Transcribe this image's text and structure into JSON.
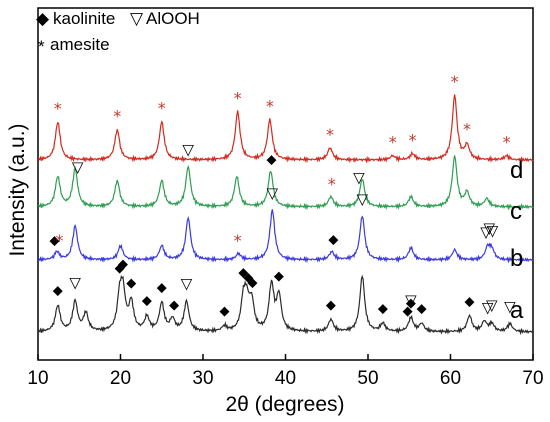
{
  "chart_data": {
    "type": "line",
    "title": "",
    "xlabel": "2θ (degrees)",
    "ylabel": "Intensity (a.u.)",
    "xlim": [
      10,
      70
    ],
    "x_ticks": [
      "10",
      "20",
      "30",
      "40",
      "50",
      "60",
      "70"
    ],
    "y_ticks": [],
    "grid": false,
    "legend": {
      "placement": "top-left",
      "entries": [
        {
          "symbol": "◆",
          "label": "kaolinite",
          "color": "#000000"
        },
        {
          "symbol": "▽",
          "label": "AlOOH",
          "color": "#000000"
        },
        {
          "symbol": "*",
          "label": "amesite",
          "color": "#c0392b"
        }
      ]
    },
    "series": [
      {
        "name": "a",
        "color": "#2b2b2b",
        "offset": 0,
        "peaks": [
          [
            12.4,
            26
          ],
          [
            14.5,
            30
          ],
          [
            15.8,
            18
          ],
          [
            19.9,
            32
          ],
          [
            20.3,
            36
          ],
          [
            21.3,
            28
          ],
          [
            23.2,
            14
          ],
          [
            25.0,
            28
          ],
          [
            26.3,
            12
          ],
          [
            28.0,
            30
          ],
          [
            32.6,
            5
          ],
          [
            34.9,
            30
          ],
          [
            35.3,
            26
          ],
          [
            35.9,
            28
          ],
          [
            38.3,
            46
          ],
          [
            39.2,
            35
          ],
          [
            45.5,
            12
          ],
          [
            49.3,
            56
          ],
          [
            51.8,
            8
          ],
          [
            55.2,
            14
          ],
          [
            56.5,
            8
          ],
          [
            62.3,
            16
          ],
          [
            64.1,
            10
          ],
          [
            65.0,
            8
          ],
          [
            67.2,
            8
          ]
        ]
      },
      {
        "name": "b",
        "color": "#3a3ae0",
        "offset": 72,
        "peaks": [
          [
            12.3,
            8
          ],
          [
            14.5,
            34
          ],
          [
            20.0,
            14
          ],
          [
            25.0,
            14
          ],
          [
            28.2,
            42
          ],
          [
            34.3,
            6
          ],
          [
            38.4,
            50
          ],
          [
            45.6,
            8
          ],
          [
            49.3,
            44
          ],
          [
            55.2,
            12
          ],
          [
            60.5,
            10
          ],
          [
            64.5,
            12
          ],
          [
            65.0,
            10
          ]
        ]
      },
      {
        "name": "c",
        "color": "#2e9e4f",
        "offset": 125,
        "peaks": [
          [
            12.4,
            30
          ],
          [
            14.5,
            38
          ],
          [
            19.6,
            26
          ],
          [
            25.0,
            26
          ],
          [
            28.2,
            40
          ],
          [
            34.1,
            30
          ],
          [
            38.2,
            36
          ],
          [
            45.5,
            10
          ],
          [
            49.3,
            28
          ],
          [
            55.2,
            10
          ],
          [
            60.5,
            50
          ],
          [
            62.0,
            14
          ],
          [
            64.4,
            8
          ]
        ]
      },
      {
        "name": "d",
        "color": "#d42a1c",
        "offset": 172,
        "peaks": [
          [
            12.4,
            38
          ],
          [
            19.6,
            30
          ],
          [
            25.0,
            38
          ],
          [
            34.2,
            48
          ],
          [
            38.1,
            40
          ],
          [
            45.4,
            12
          ],
          [
            53.0,
            4
          ],
          [
            55.4,
            6
          ],
          [
            60.5,
            64
          ],
          [
            62.0,
            14
          ],
          [
            66.8,
            4
          ]
        ]
      }
    ],
    "annotations": {
      "kaolinite": [
        [
          12.4,
          "a"
        ],
        [
          19.9,
          "a"
        ],
        [
          20.3,
          "a"
        ],
        [
          21.3,
          "a"
        ],
        [
          23.2,
          "a"
        ],
        [
          25.0,
          "a"
        ],
        [
          26.5,
          "a"
        ],
        [
          32.6,
          "a"
        ],
        [
          34.9,
          "a"
        ],
        [
          35.5,
          "a"
        ],
        [
          36.0,
          "a"
        ],
        [
          38.3,
          "c"
        ],
        [
          39.2,
          "a"
        ],
        [
          45.5,
          "a"
        ],
        [
          45.8,
          "b"
        ],
        [
          51.8,
          "a"
        ],
        [
          54.8,
          "a"
        ],
        [
          55.2,
          "a"
        ],
        [
          56.5,
          "a"
        ],
        [
          62.3,
          "a"
        ],
        [
          12.0,
          "b"
        ]
      ],
      "alooh": [
        [
          14.5,
          "a"
        ],
        [
          28.0,
          "a"
        ],
        [
          38.4,
          "b"
        ],
        [
          49.3,
          "b"
        ],
        [
          55.2,
          "a"
        ],
        [
          64.5,
          "a"
        ],
        [
          65.0,
          "a"
        ],
        [
          67.2,
          "a"
        ],
        [
          64.3,
          "b"
        ],
        [
          64.7,
          "b"
        ],
        [
          65.1,
          "b"
        ],
        [
          14.8,
          "c"
        ],
        [
          28.2,
          "c"
        ],
        [
          48.9,
          "c"
        ]
      ],
      "amesite": [
        [
          12.4,
          "d"
        ],
        [
          12.6,
          "b"
        ],
        [
          19.6,
          "d"
        ],
        [
          25.0,
          "d"
        ],
        [
          34.2,
          "d"
        ],
        [
          34.2,
          "b"
        ],
        [
          38.1,
          "d"
        ],
        [
          45.4,
          "d"
        ],
        [
          45.6,
          "c"
        ],
        [
          53.0,
          "d"
        ],
        [
          55.4,
          "d"
        ],
        [
          60.5,
          "d"
        ],
        [
          62.0,
          "d"
        ],
        [
          66.8,
          "d"
        ]
      ]
    }
  }
}
